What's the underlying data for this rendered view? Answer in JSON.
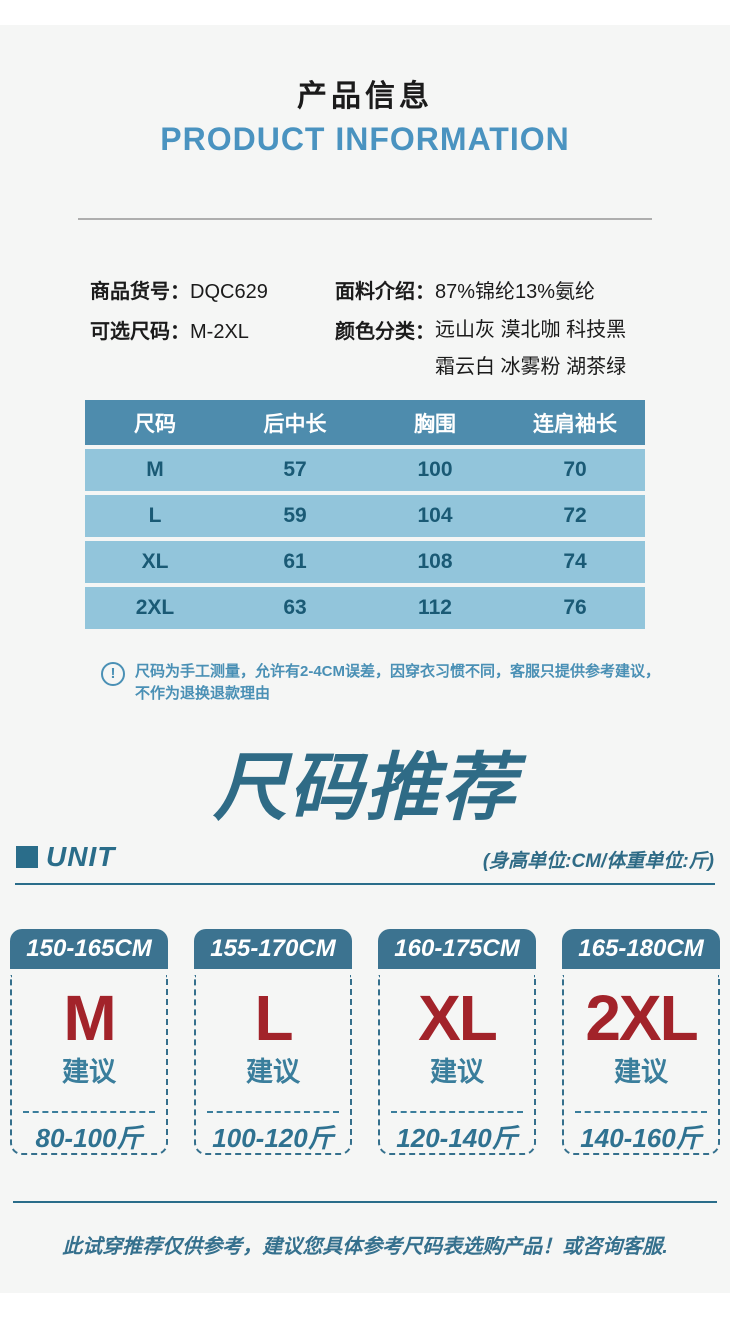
{
  "header": {
    "title_cn": "产品信息",
    "title_en": "PRODUCT INFORMATION"
  },
  "product_info": {
    "item_code_label": "商品货号：",
    "item_code_value": "DQC629",
    "sizes_label": "可选尺码：",
    "sizes_value": "M-2XL",
    "fabric_label": "面料介绍：",
    "fabric_value": "87%锦纶13%氨纶",
    "colors_label": "颜色分类：",
    "colors_value_line1": "远山灰 漠北咖 科技黑",
    "colors_value_line2": "霜云白 冰雾粉 湖茶绿"
  },
  "size_table": {
    "headers": [
      "尺码",
      "后中长",
      "胸围",
      "连肩袖长"
    ],
    "rows": [
      [
        "M",
        "57",
        "100",
        "70"
      ],
      [
        "L",
        "59",
        "104",
        "72"
      ],
      [
        "XL",
        "61",
        "108",
        "74"
      ],
      [
        "2XL",
        "63",
        "112",
        "76"
      ]
    ]
  },
  "note": {
    "icon": "exclamation-circle",
    "icon_glyph": "!",
    "line1": "尺码为手工测量，允许有2-4CM误差，因穿衣习惯不同，客服只提供参考建议，",
    "line2": "不作为退换退款理由"
  },
  "recommendation": {
    "title": "尺码推荐",
    "unit_label": "UNIT",
    "unit_note": "(身高单位:CM/体重单位:斤)",
    "suggest_label": "建议",
    "cards": [
      {
        "height_range": "150-165CM",
        "size": "M",
        "weight_range": "80-100斤"
      },
      {
        "height_range": "155-170CM",
        "size": "L",
        "weight_range": "100-120斤"
      },
      {
        "height_range": "160-175CM",
        "size": "XL",
        "weight_range": "120-140斤"
      },
      {
        "height_range": "165-180CM",
        "size": "2XL",
        "weight_range": "140-160斤"
      }
    ]
  },
  "disclaimer": "此试穿推荐仅供参考，建议您具体参考尺码表选购产品！或咨询客服.",
  "colors": {
    "accent_blue": "#4a93c0",
    "table_header_blue": "#4e8cad",
    "table_row_blue": "#92c5db",
    "table_text_blue": "#1a5a75",
    "note_blue": "#4a90b5",
    "teal_dark": "#2a6d8a",
    "card_header_teal": "#3c7390",
    "size_red": "#a2232a",
    "panel_gray": "#f5f6f5",
    "divider_gray": "#aeaeae"
  }
}
